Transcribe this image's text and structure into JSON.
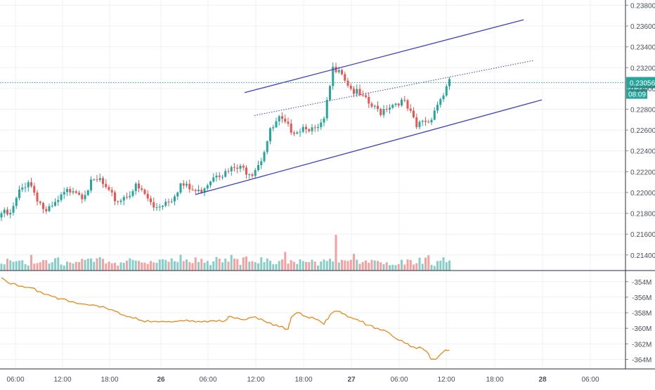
{
  "colors": {
    "up": "#26a69a",
    "down": "#ef5350",
    "channel": "#3d3fd1",
    "indicator": "#f57c00",
    "price_line": "#26a69a",
    "grid": "#eef1f5",
    "axis_text": "#4a4f5c"
  },
  "price_label": {
    "value": "0.23056",
    "countdown": "08:09"
  },
  "chart_data": [
    {
      "type": "candlestick",
      "title": "",
      "x_ticks": [
        "06:00",
        "12:00",
        "18:00",
        "26",
        "06:00",
        "12:00",
        "18:00",
        "27",
        "06:00",
        "12:00",
        "18:00",
        "28",
        "06:00"
      ],
      "y_ticks": [
        "0.23800",
        "0.23600",
        "0.23400",
        "0.23200",
        "0.23000",
        "0.22800",
        "0.22600",
        "0.22400",
        "0.22200",
        "0.22000",
        "0.21800",
        "0.21600",
        "0.21400"
      ],
      "ylim": [
        0.2125,
        0.2385
      ],
      "last_price": 0.23056,
      "close_path": [
        [
          0,
          0.218
        ],
        [
          3,
          0.2178
        ],
        [
          6,
          0.22
        ],
        [
          9,
          0.2212
        ],
        [
          12,
          0.2195
        ],
        [
          15,
          0.218
        ],
        [
          18,
          0.2188
        ],
        [
          21,
          0.2198
        ],
        [
          24,
          0.2205
        ],
        [
          27,
          0.2198
        ],
        [
          30,
          0.2208
        ],
        [
          33,
          0.2212
        ],
        [
          36,
          0.2198
        ],
        [
          39,
          0.2192
        ],
        [
          42,
          0.2198
        ],
        [
          45,
          0.2205
        ],
        [
          48,
          0.2198
        ],
        [
          51,
          0.2185
        ],
        [
          54,
          0.219
        ],
        [
          57,
          0.2195
        ],
        [
          60,
          0.2208
        ],
        [
          63,
          0.2203
        ],
        [
          66,
          0.22
        ],
        [
          69,
          0.221
        ],
        [
          72,
          0.222
        ],
        [
          75,
          0.2218
        ],
        [
          78,
          0.2223
        ],
        [
          81,
          0.2222
        ],
        [
          84,
          0.222
        ],
        [
          87,
          0.2233
        ],
        [
          90,
          0.2258
        ],
        [
          93,
          0.227
        ],
        [
          96,
          0.2262
        ],
        [
          99,
          0.226
        ],
        [
          102,
          0.2265
        ],
        [
          105,
          0.2258
        ],
        [
          108,
          0.2268
        ],
        [
          111,
          0.2318
        ],
        [
          113,
          0.2322
        ],
        [
          115,
          0.231
        ],
        [
          117,
          0.23
        ],
        [
          119,
          0.2295
        ],
        [
          121,
          0.229
        ],
        [
          123,
          0.2285
        ],
        [
          125,
          0.228
        ],
        [
          127,
          0.2278
        ],
        [
          129,
          0.2283
        ],
        [
          131,
          0.2285
        ],
        [
          133,
          0.2288
        ],
        [
          135,
          0.2285
        ],
        [
          137,
          0.2275
        ],
        [
          139,
          0.2262
        ],
        [
          141,
          0.227
        ],
        [
          143,
          0.2268
        ],
        [
          145,
          0.228
        ],
        [
          147,
          0.229
        ],
        [
          149,
          0.23
        ],
        [
          150,
          0.2305
        ]
      ],
      "volume_spikes": [
        [
          10,
          1.7
        ],
        [
          60,
          1.5
        ],
        [
          77,
          1.8
        ],
        [
          95,
          1.8
        ],
        [
          112,
          4.2
        ],
        [
          118,
          1.6
        ],
        [
          143,
          1.4
        ],
        [
          148,
          1.3
        ]
      ],
      "channel": {
        "upper": [
          [
            0.2296,
            0.2366
          ]
        ],
        "lower": [
          [
            0.2198,
            0.2289
          ]
        ],
        "mid_dotted": [
          [
            0.2274,
            0.2327
          ]
        ]
      }
    },
    {
      "type": "line",
      "y_ticks": [
        "-354M",
        "-356M",
        "-358M",
        "-360M",
        "-362M",
        "-364M"
      ],
      "ylim": [
        -364.5,
        -353.3
      ],
      "values": [
        [
          0,
          -353.5
        ],
        [
          3,
          -354.3
        ],
        [
          7,
          -354.6
        ],
        [
          10,
          -354.8
        ],
        [
          13,
          -355.3
        ],
        [
          17,
          -355.9
        ],
        [
          20,
          -356.2
        ],
        [
          24,
          -356.6
        ],
        [
          28,
          -356.9
        ],
        [
          32,
          -357.1
        ],
        [
          35,
          -357.4
        ],
        [
          38,
          -357.8
        ],
        [
          41,
          -358.3
        ],
        [
          44,
          -358.7
        ],
        [
          47,
          -359.0
        ],
        [
          50,
          -359.2
        ],
        [
          54,
          -359.1
        ],
        [
          57,
          -359.2
        ],
        [
          60,
          -359.0
        ],
        [
          63,
          -359.1
        ],
        [
          66,
          -359.1
        ],
        [
          69,
          -359.2
        ],
        [
          72,
          -359.1
        ],
        [
          75,
          -359.0
        ],
        [
          76,
          -358.5
        ],
        [
          78,
          -358.7
        ],
        [
          81,
          -358.9
        ],
        [
          84,
          -358.6
        ],
        [
          87,
          -358.8
        ],
        [
          90,
          -359.3
        ],
        [
          93,
          -359.8
        ],
        [
          96,
          -360.1
        ],
        [
          97,
          -358.6
        ],
        [
          99,
          -358.0
        ],
        [
          102,
          -358.5
        ],
        [
          105,
          -358.8
        ],
        [
          108,
          -359.5
        ],
        [
          110,
          -358.3
        ],
        [
          112,
          -357.8
        ],
        [
          114,
          -358.1
        ],
        [
          117,
          -358.6
        ],
        [
          120,
          -359.1
        ],
        [
          123,
          -359.6
        ],
        [
          126,
          -360.0
        ],
        [
          129,
          -360.4
        ],
        [
          132,
          -361.3
        ],
        [
          135,
          -361.9
        ],
        [
          138,
          -362.4
        ],
        [
          141,
          -362.6
        ],
        [
          143,
          -363.3
        ],
        [
          144,
          -364.0
        ],
        [
          145,
          -364.0
        ],
        [
          146,
          -363.8
        ],
        [
          148,
          -363.0
        ],
        [
          150,
          -362.8
        ]
      ]
    }
  ]
}
